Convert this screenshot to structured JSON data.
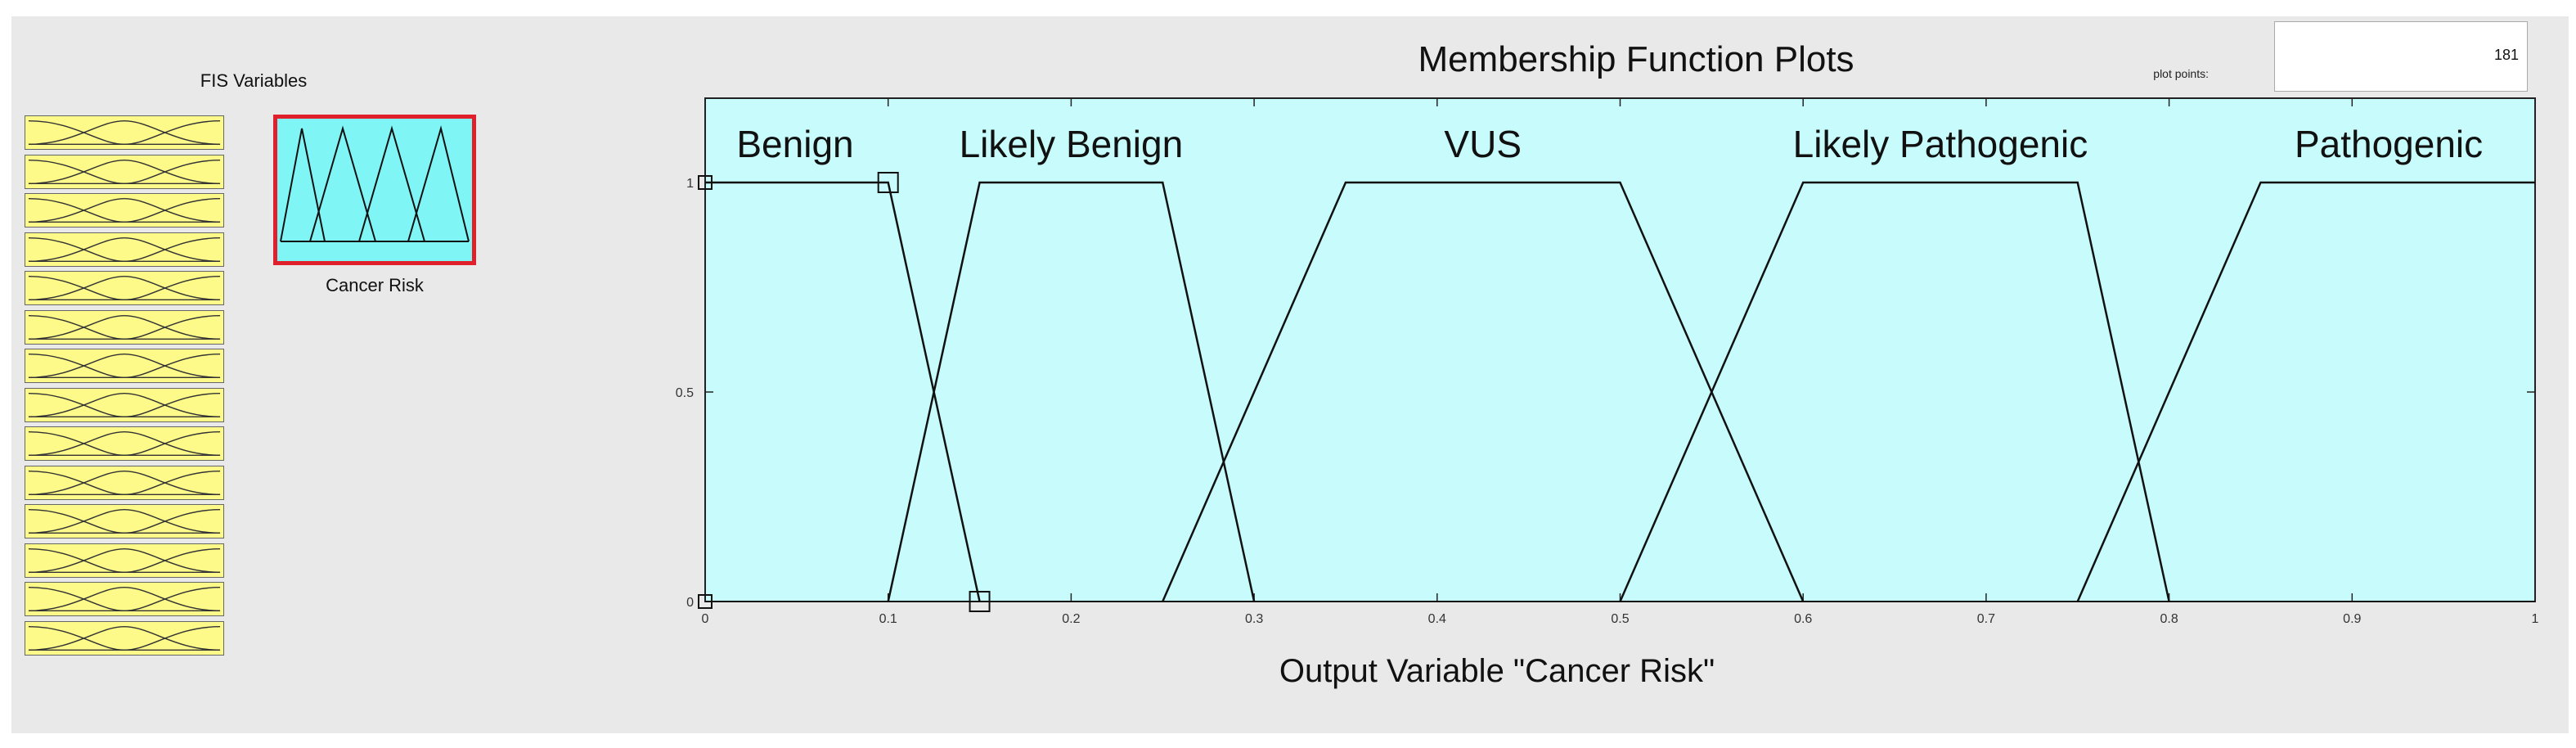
{
  "fis_panel": {
    "title": "FIS Variables",
    "input_count": 14,
    "output_variable_label": "Cancer Risk"
  },
  "plot": {
    "title": "Membership Function Plots",
    "plot_points_label": "plot points:",
    "plot_points_value": "181",
    "xlabel": "Output Variable \"Cancer Risk\""
  },
  "colors": {
    "plot_bg": "#c8fbfb",
    "input_var_fill": "#fdfa8a",
    "output_var_fill": "#7ff5f5",
    "selected_border": "#e0202a"
  },
  "chart_data": {
    "type": "line",
    "title": "Membership Function Plots",
    "xlabel": "Output Variable \"Cancer Risk\"",
    "ylabel": "",
    "xlim": [
      0,
      1
    ],
    "ylim": [
      0,
      1
    ],
    "x_ticks": [
      "0",
      "0.1",
      "0.2",
      "0.3",
      "0.4",
      "0.5",
      "0.6",
      "0.7",
      "0.8",
      "0.9",
      "1"
    ],
    "y_ticks": [
      "0",
      "0.5",
      "1"
    ],
    "series": [
      {
        "name": "Benign",
        "x": [
          0,
          0.1,
          0.15
        ],
        "y": [
          1,
          1,
          0
        ]
      },
      {
        "name": "Likely Benign",
        "x": [
          0.1,
          0.15,
          0.25,
          0.3
        ],
        "y": [
          0,
          1,
          1,
          0
        ]
      },
      {
        "name": "VUS",
        "x": [
          0.25,
          0.35,
          0.5,
          0.6
        ],
        "y": [
          0,
          1,
          1,
          0
        ]
      },
      {
        "name": "Likely Pathogenic",
        "x": [
          0.5,
          0.6,
          0.75,
          0.8
        ],
        "y": [
          0,
          1,
          1,
          0
        ]
      },
      {
        "name": "Pathogenic",
        "x": [
          0.75,
          0.85,
          1
        ],
        "y": [
          0,
          1,
          1
        ]
      }
    ]
  }
}
